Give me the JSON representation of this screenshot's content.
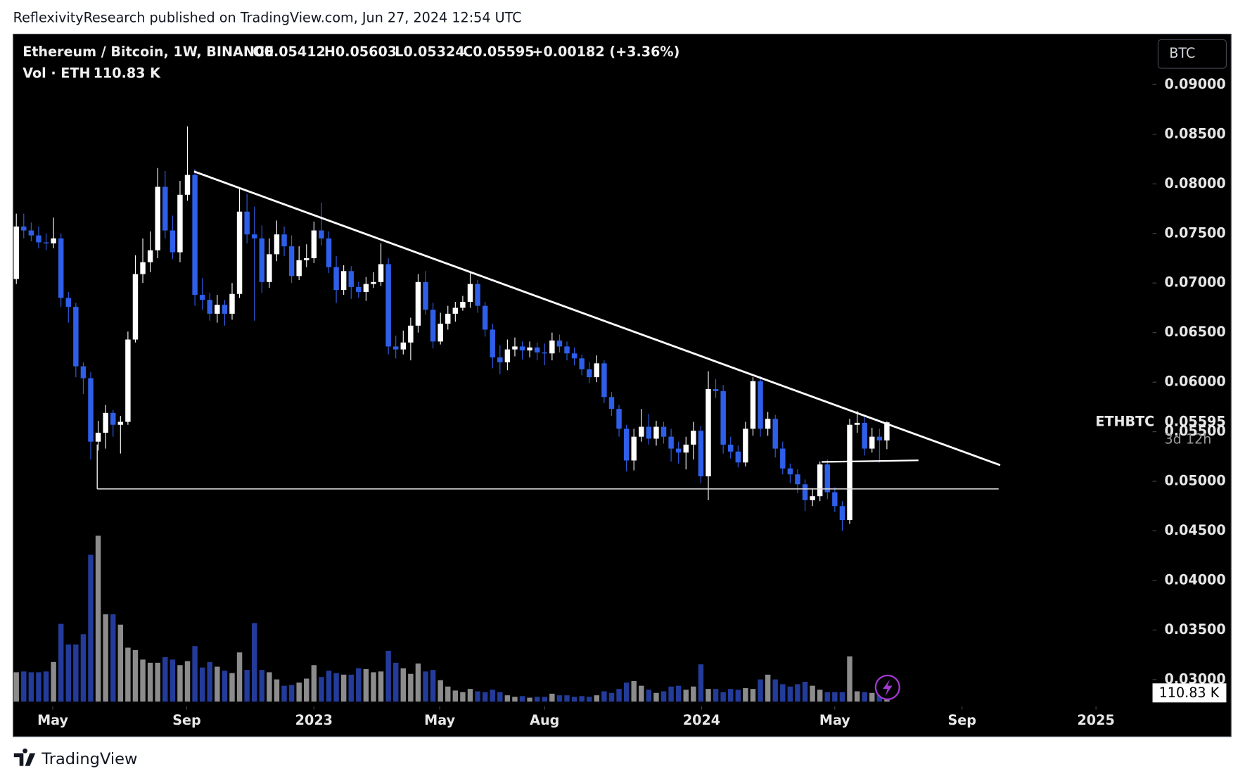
{
  "chart_data": {
    "type": "candlestick",
    "header": "ReflexivityResearch published on TradingView.com, Jun 27, 2024 12:54 UTC",
    "symbol": "Ethereum / Bitcoin, 1W, BINANCE",
    "ohlc_legend": [
      "O0.05412",
      "H0.05603",
      "L0.05324",
      "C0.05595"
    ],
    "change": "+0.00182 (+3.36%)",
    "volume_title": "Vol · ETH",
    "volume_value_label": "110.83 K",
    "currency": "BTC",
    "ticker": "ETHBTC",
    "countdown": "3d 12h",
    "branding": "TradingView",
    "up_color": "#ffffff",
    "down_color": "#2f5fe8",
    "volume_up_color": "#8c8c8c",
    "volume_down_color": "#233b99",
    "grid": false,
    "xlim": [
      -0.43,
      152.7
    ],
    "xticks": [
      {
        "value": 4.9,
        "label": "May"
      },
      {
        "value": 22.9,
        "label": "Sep"
      },
      {
        "value": 40.0,
        "label": "2023"
      },
      {
        "value": 56.9,
        "label": "May"
      },
      {
        "value": 71.0,
        "label": "Aug"
      },
      {
        "value": 92.1,
        "label": "2024"
      },
      {
        "value": 110.0,
        "label": "May"
      },
      {
        "value": 127.1,
        "label": "Sep"
      },
      {
        "value": 145.1,
        "label": "2025"
      }
    ],
    "ylim": [
      0.0273,
      0.0951
    ],
    "yticks": [
      {
        "value": 0.03,
        "label": "0.03000"
      },
      {
        "value": 0.035,
        "label": "0.03500"
      },
      {
        "value": 0.04,
        "label": "0.04000"
      },
      {
        "value": 0.045,
        "label": "0.04500"
      },
      {
        "value": 0.05,
        "label": "0.05000"
      },
      {
        "value": 0.055,
        "label": "0.05500"
      },
      {
        "value": 0.06,
        "label": "0.06000"
      },
      {
        "value": 0.065,
        "label": "0.06500"
      },
      {
        "value": 0.07,
        "label": "0.07000"
      },
      {
        "value": 0.075,
        "label": "0.07500"
      },
      {
        "value": 0.08,
        "label": "0.08000"
      },
      {
        "value": 0.085,
        "label": "0.08500"
      },
      {
        "value": 0.09,
        "label": "0.09000"
      }
    ],
    "vlim": [
      0,
      2500
    ],
    "open": [
      0.0704,
      0.0757,
      0.0753,
      0.0748,
      0.0741,
      0.074,
      0.0745,
      0.0685,
      0.0676,
      0.0616,
      0.0604,
      0.054,
      0.0549,
      0.0569,
      0.0557,
      0.056,
      0.0643,
      0.0709,
      0.0721,
      0.0733,
      0.0797,
      0.0753,
      0.0731,
      0.0789,
      0.0809,
      0.0688,
      0.0683,
      0.0669,
      0.0678,
      0.0669,
      0.0689,
      0.0772,
      0.0749,
      0.0745,
      0.0701,
      0.0729,
      0.0749,
      0.0737,
      0.0707,
      0.0723,
      0.0725,
      0.0753,
      0.0745,
      0.0716,
      0.0693,
      0.0712,
      0.0696,
      0.0691,
      0.0699,
      0.0701,
      0.0719,
      0.0636,
      0.0633,
      0.064,
      0.0657,
      0.0701,
      0.0673,
      0.0641,
      0.0659,
      0.0669,
      0.0675,
      0.0681,
      0.0699,
      0.0677,
      0.0653,
      0.0625,
      0.062,
      0.0633,
      0.0636,
      0.0632,
      0.0635,
      0.063,
      0.0629,
      0.0642,
      0.0636,
      0.0629,
      0.0624,
      0.0613,
      0.0605,
      0.0619,
      0.0585,
      0.0573,
      0.0553,
      0.0521,
      0.0545,
      0.0555,
      0.0543,
      0.0555,
      0.0545,
      0.0533,
      0.0529,
      0.0537,
      0.0551,
      0.0505,
      0.0593,
      0.0591,
      0.0537,
      0.053,
      0.0519,
      0.0553,
      0.0601,
      0.0553,
      0.0563,
      0.0533,
      0.0513,
      0.0507,
      0.0497,
      0.0481,
      0.0485,
      0.0517,
      0.0489,
      0.0475,
      0.0461,
      0.0557,
      0.0559,
      0.0533,
      0.0545,
      0.05412
    ],
    "high": [
      0.077,
      0.077,
      0.0761,
      0.0757,
      0.075,
      0.0766,
      0.075,
      0.0691,
      0.068,
      0.062,
      0.061,
      0.0561,
      0.0577,
      0.0572,
      0.0566,
      0.0651,
      0.0728,
      0.0745,
      0.0752,
      0.0816,
      0.0813,
      0.0768,
      0.0803,
      0.0858,
      0.0815,
      0.0705,
      0.069,
      0.0688,
      0.0683,
      0.07,
      0.0795,
      0.079,
      0.0777,
      0.0758,
      0.0745,
      0.0763,
      0.0757,
      0.0748,
      0.0737,
      0.0739,
      0.0762,
      0.0781,
      0.0752,
      0.0727,
      0.0718,
      0.0717,
      0.0701,
      0.0706,
      0.0711,
      0.074,
      0.0725,
      0.0647,
      0.0652,
      0.0665,
      0.0709,
      0.0712,
      0.068,
      0.067,
      0.0677,
      0.0681,
      0.0687,
      0.0711,
      0.0703,
      0.0681,
      0.0659,
      0.0637,
      0.0643,
      0.0645,
      0.0641,
      0.0641,
      0.064,
      0.0639,
      0.065,
      0.0648,
      0.0641,
      0.0635,
      0.0628,
      0.062,
      0.0627,
      0.0622,
      0.059,
      0.0577,
      0.0557,
      0.0553,
      0.0573,
      0.0568,
      0.0561,
      0.056,
      0.0553,
      0.054,
      0.0545,
      0.056,
      0.0556,
      0.0611,
      0.0603,
      0.0597,
      0.0545,
      0.0536,
      0.056,
      0.0605,
      0.0606,
      0.057,
      0.0567,
      0.054,
      0.0518,
      0.0512,
      0.0502,
      0.0493,
      0.052,
      0.0522,
      0.0494,
      0.048,
      0.0563,
      0.0571,
      0.0566,
      0.0554,
      0.0553,
      0.05603
    ],
    "low": [
      0.0699,
      0.0745,
      0.0742,
      0.0735,
      0.0733,
      0.0735,
      0.0676,
      0.066,
      0.0605,
      0.0588,
      0.0522,
      0.0531,
      0.0533,
      0.0545,
      0.0528,
      0.0557,
      0.064,
      0.07,
      0.0711,
      0.0725,
      0.0745,
      0.0724,
      0.0721,
      0.0783,
      0.0677,
      0.0673,
      0.0662,
      0.066,
      0.0657,
      0.0663,
      0.0685,
      0.074,
      0.0662,
      0.069,
      0.0695,
      0.0722,
      0.0727,
      0.07,
      0.0703,
      0.0716,
      0.072,
      0.0738,
      0.071,
      0.068,
      0.0688,
      0.0684,
      0.0685,
      0.0682,
      0.0695,
      0.0697,
      0.0628,
      0.0624,
      0.0628,
      0.0622,
      0.065,
      0.0668,
      0.0634,
      0.0638,
      0.0653,
      0.0661,
      0.0672,
      0.0675,
      0.067,
      0.0646,
      0.0614,
      0.0608,
      0.0612,
      0.0626,
      0.0623,
      0.0625,
      0.0622,
      0.0617,
      0.0622,
      0.063,
      0.0622,
      0.0617,
      0.0607,
      0.0599,
      0.06,
      0.0579,
      0.0566,
      0.0545,
      0.051,
      0.0511,
      0.054,
      0.0537,
      0.0536,
      0.0538,
      0.052,
      0.0518,
      0.0512,
      0.0522,
      0.0498,
      0.0481,
      0.0584,
      0.0528,
      0.0523,
      0.0514,
      0.0515,
      0.0546,
      0.0545,
      0.0546,
      0.0524,
      0.0507,
      0.0498,
      0.0488,
      0.047,
      0.0475,
      0.048,
      0.0482,
      0.0469,
      0.045,
      0.0457,
      0.0549,
      0.0526,
      0.0529,
      0.0519,
      0.05324
    ],
    "close": [
      0.0757,
      0.0753,
      0.0748,
      0.0741,
      0.074,
      0.0745,
      0.0685,
      0.0676,
      0.0616,
      0.0604,
      0.054,
      0.0549,
      0.0569,
      0.0557,
      0.056,
      0.0643,
      0.0709,
      0.0721,
      0.0733,
      0.0797,
      0.0753,
      0.0731,
      0.0789,
      0.0809,
      0.0688,
      0.0683,
      0.0669,
      0.0678,
      0.0669,
      0.0689,
      0.0772,
      0.0749,
      0.0745,
      0.0701,
      0.0729,
      0.0749,
      0.0737,
      0.0707,
      0.0723,
      0.0725,
      0.0753,
      0.0745,
      0.0716,
      0.0693,
      0.0712,
      0.0696,
      0.0691,
      0.0699,
      0.0701,
      0.0719,
      0.0636,
      0.0633,
      0.064,
      0.0657,
      0.0701,
      0.0673,
      0.0641,
      0.0659,
      0.0669,
      0.0675,
      0.0681,
      0.0699,
      0.0677,
      0.0653,
      0.0625,
      0.062,
      0.0633,
      0.0636,
      0.0632,
      0.0635,
      0.063,
      0.0629,
      0.0642,
      0.0636,
      0.0629,
      0.0624,
      0.0613,
      0.0605,
      0.0619,
      0.0585,
      0.0573,
      0.0553,
      0.0521,
      0.0545,
      0.0555,
      0.0543,
      0.0555,
      0.0545,
      0.0533,
      0.0529,
      0.0537,
      0.0551,
      0.0505,
      0.0593,
      0.0591,
      0.0537,
      0.053,
      0.0519,
      0.0553,
      0.0601,
      0.0553,
      0.0563,
      0.0533,
      0.0513,
      0.0507,
      0.0497,
      0.0481,
      0.0485,
      0.0517,
      0.0489,
      0.0475,
      0.0461,
      0.0557,
      0.0559,
      0.0533,
      0.0545,
      0.05412,
      0.05595
    ],
    "volume": [
      370,
      380,
      370,
      370,
      380,
      500,
      980,
      720,
      720,
      850,
      1850,
      2090,
      1100,
      1100,
      970,
      680,
      650,
      530,
      490,
      490,
      560,
      530,
      460,
      510,
      700,
      430,
      500,
      440,
      390,
      360,
      620,
      400,
      990,
      400,
      370,
      280,
      200,
      210,
      240,
      290,
      460,
      310,
      390,
      360,
      340,
      340,
      420,
      410,
      370,
      380,
      640,
      490,
      420,
      350,
      480,
      380,
      400,
      270,
      190,
      140,
      120,
      160,
      130,
      120,
      150,
      120,
      80,
      60,
      70,
      50,
      60,
      60,
      100,
      80,
      80,
      60,
      70,
      60,
      80,
      130,
      110,
      160,
      240,
      260,
      200,
      150,
      110,
      130,
      190,
      200,
      150,
      190,
      470,
      160,
      160,
      120,
      160,
      150,
      170,
      160,
      280,
      340,
      280,
      220,
      190,
      220,
      250,
      200,
      150,
      120,
      120,
      120,
      570,
      130,
      120,
      110,
      100,
      110.83
    ]
  }
}
